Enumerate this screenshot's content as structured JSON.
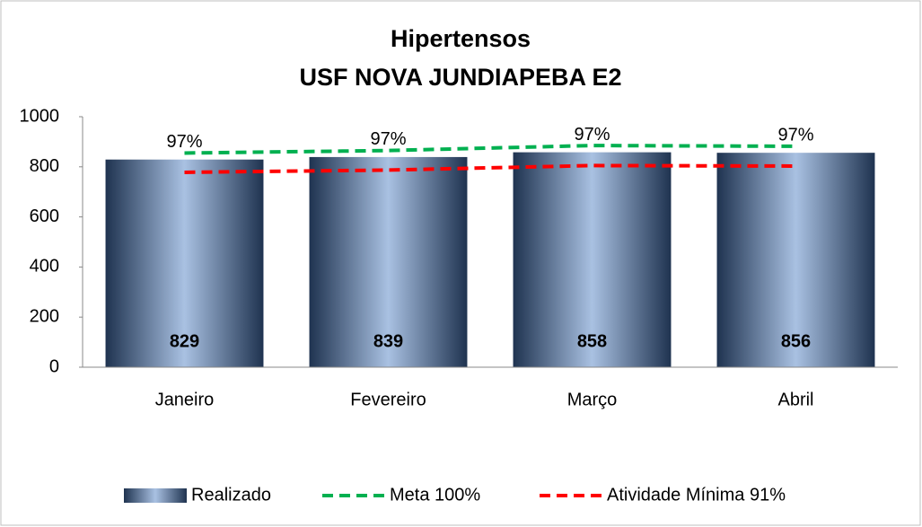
{
  "chart_data": {
    "type": "bar",
    "title": "Hipertensos",
    "subtitle": "USF NOVA JUNDIAPEBA E2",
    "categories": [
      "Janeiro",
      "Fevereiro",
      "Março",
      "Abril"
    ],
    "series": [
      {
        "name": "Realizado",
        "color": "#8fa9cc",
        "values": [
          829,
          839,
          858,
          856
        ],
        "annotations": [
          "97%",
          "97%",
          "97%",
          "97%"
        ]
      },
      {
        "name": "Meta 100%",
        "type": "line",
        "color": "#00b050",
        "values": [
          855,
          865,
          885,
          882
        ]
      },
      {
        "name": "Atividade Mínima 91%",
        "type": "line",
        "color": "#ff0000",
        "values": [
          778,
          787,
          805,
          803
        ]
      }
    ],
    "ylim": [
      0,
      1000
    ],
    "yticks": [
      0,
      200,
      400,
      600,
      800,
      1000
    ],
    "grid": false,
    "legend": "bottom"
  }
}
